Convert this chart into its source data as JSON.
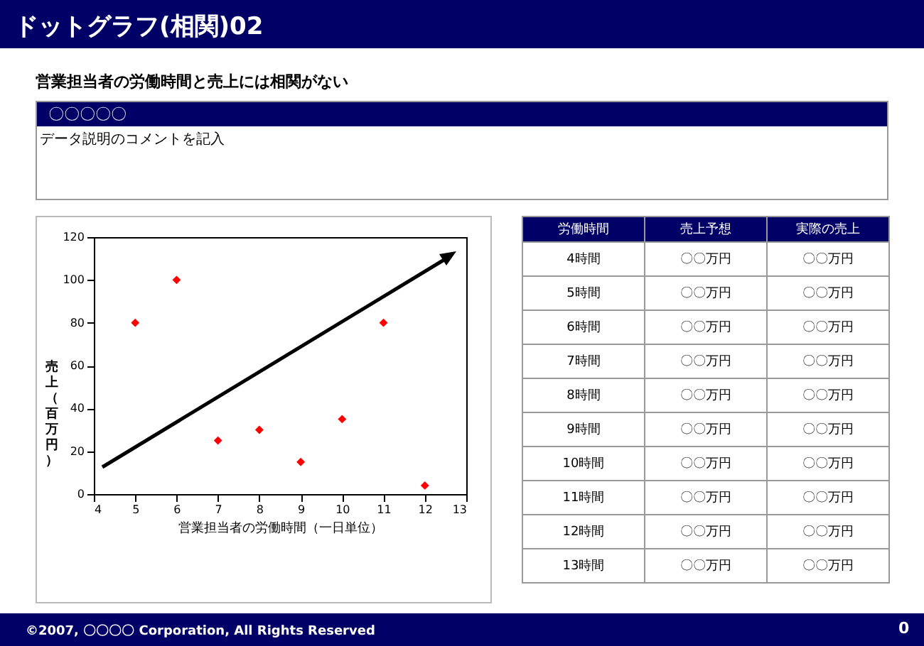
{
  "chart_data": [
    {
      "type": "scatter",
      "title": "ドットグラフ(相関)02",
      "subtitle": "営業担当者の労働時間と売上には相関がない",
      "xlabel": "営業担当者の労働時間（一日単位）",
      "ylabel": "売上（百万円）",
      "annotations": [
        "〇〇〇〇〇",
        "データ説明のコメントを記入",
        "©2007, 〇〇〇〇 Corporation, All Rights Reserved",
        "0",
        "労働時間",
        "売上予想",
        "実際の売上",
        "4時間",
        "〇〇万円",
        "〇〇万円",
        "5時間",
        "〇〇万円",
        "〇〇万円",
        "6時間",
        "〇〇万円",
        "〇〇万円",
        "7時間",
        "〇〇万円",
        "〇〇万円",
        "8時間",
        "〇〇万円",
        "〇〇万円",
        "9時間",
        "〇〇万円",
        "〇〇万円",
        "10時間",
        "〇〇万円",
        "〇〇万円",
        "11時間",
        "〇〇万円",
        "〇〇万円",
        "12時間",
        "〇〇万円",
        "〇〇万円",
        "13時間",
        "〇〇万円",
        "〇〇万円"
      ],
      "x": [
        5,
        6,
        7,
        8,
        9,
        10,
        11,
        12
      ],
      "series": [
        {
          "color": "#ff0000",
          "values": [
            80,
            100,
            25,
            30,
            15,
            35,
            80,
            4
          ]
        }
      ],
      "xlim": [
        4,
        13
      ],
      "xticks": [
        4,
        5,
        6,
        7,
        8,
        9,
        10,
        11,
        12,
        13
      ],
      "ylim": [
        0,
        120
      ],
      "yticks": [
        0,
        20,
        40,
        60,
        80,
        100,
        120
      ],
      "grid": false,
      "marker": "diamond"
    }
  ]
}
